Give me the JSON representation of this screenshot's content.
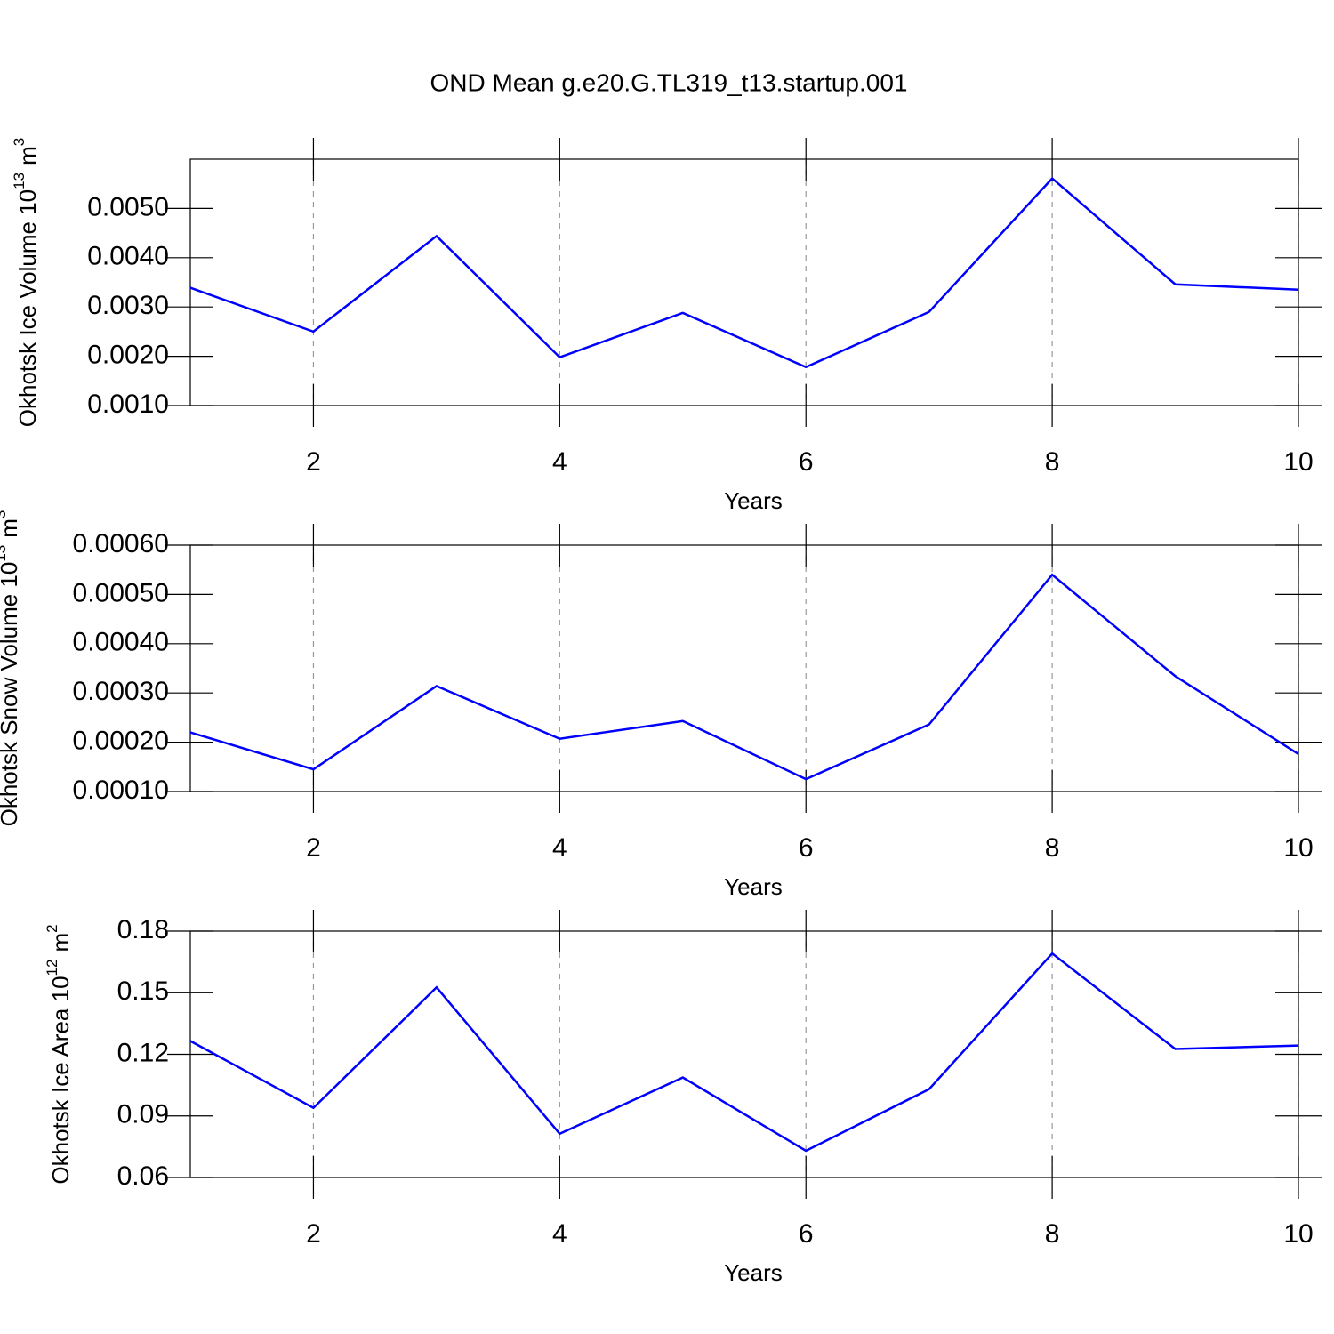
{
  "title": "OND Mean g.e20.G.TL319_t13.startup.001",
  "chart_data": [
    {
      "type": "line",
      "x": [
        1,
        2,
        3,
        4,
        5,
        6,
        7,
        8,
        9,
        10
      ],
      "series": [
        {
          "color": "#0000ff",
          "values": [
            0.00339,
            0.0025,
            0.00444,
            0.00198,
            0.00288,
            0.00178,
            0.0029,
            0.00561,
            0.00346,
            0.00335
          ]
        }
      ],
      "xlabel": "Years",
      "ylabel": {
        "text": "Okhotsk Ice Volume 10",
        "sup": "13",
        "unit": "m",
        "unit_sup": "3"
      },
      "xlim": [
        1,
        10
      ],
      "xticks": [
        2,
        4,
        6,
        8,
        10
      ],
      "ylim": [
        0.001,
        0.006
      ],
      "yticks": [
        {
          "value": 0.001,
          "label": "0.0010"
        },
        {
          "value": 0.002,
          "label": "0.0020"
        },
        {
          "value": 0.003,
          "label": "0.0030"
        },
        {
          "value": 0.004,
          "label": "0.0040"
        },
        {
          "value": 0.005,
          "label": "0.0050"
        }
      ],
      "xgrid": true
    },
    {
      "type": "line",
      "x": [
        1,
        2,
        3,
        4,
        5,
        6,
        7,
        8,
        9,
        10
      ],
      "series": [
        {
          "color": "#0000ff",
          "values": [
            0.00022,
            0.000145,
            0.000314,
            0.000207,
            0.000243,
            0.000125,
            0.000236,
            0.00054,
            0.000334,
            0.000176
          ]
        }
      ],
      "xlabel": "Years",
      "ylabel": {
        "text": "Okhotsk Snow Volume 10",
        "sup": "13",
        "unit": "m",
        "unit_sup": "3"
      },
      "xlim": [
        1,
        10
      ],
      "xticks": [
        2,
        4,
        6,
        8,
        10
      ],
      "ylim": [
        0.0001,
        0.0006
      ],
      "yticks": [
        {
          "value": 0.0001,
          "label": "0.00010"
        },
        {
          "value": 0.0002,
          "label": "0.00020"
        },
        {
          "value": 0.0003,
          "label": "0.00030"
        },
        {
          "value": 0.0004,
          "label": "0.00040"
        },
        {
          "value": 0.0005,
          "label": "0.00050"
        },
        {
          "value": 0.0006,
          "label": "0.00060"
        }
      ],
      "xgrid": true
    },
    {
      "type": "line",
      "x": [
        1,
        2,
        3,
        4,
        5,
        6,
        7,
        8,
        9,
        10
      ],
      "series": [
        {
          "color": "#0000ff",
          "values": [
            0.1265,
            0.0939,
            0.1526,
            0.0813,
            0.1087,
            0.073,
            0.103,
            0.1691,
            0.1226,
            0.1243
          ]
        }
      ],
      "xlabel": "Years",
      "ylabel": {
        "text": "Okhotsk Ice Area 10",
        "sup": "12",
        "unit": "m",
        "unit_sup": "2"
      },
      "xlim": [
        1,
        10
      ],
      "xticks": [
        2,
        4,
        6,
        8,
        10
      ],
      "ylim": [
        0.06,
        0.18
      ],
      "yticks": [
        0.06,
        0.09,
        0.12,
        0.15,
        0.18
      ],
      "xgrid": true
    }
  ]
}
